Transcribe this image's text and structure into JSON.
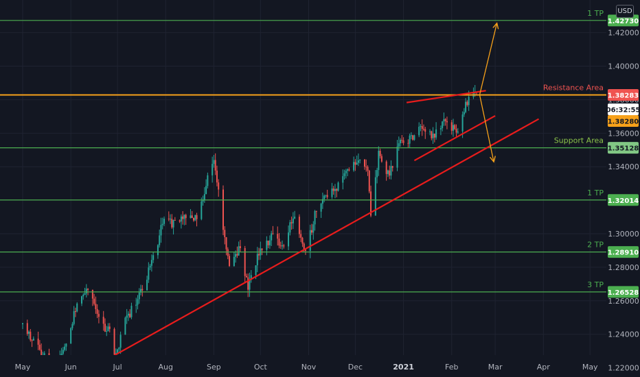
{
  "currency": "USD",
  "countdown": "06:32:55",
  "colors": {
    "background": "#131722",
    "grid": "#1f2331",
    "up": "#26a69a",
    "down": "#ef5350",
    "green_level": "#4caf50",
    "resistance": "#f7a11a",
    "trend": "#e81c1c",
    "countdown_bg": "#ffffff"
  },
  "chart_data": {
    "type": "candlestick",
    "x_axis": {
      "ticks": [
        "May",
        "Jun",
        "Jul",
        "Aug",
        "Sep",
        "Oct",
        "Nov",
        "Dec",
        "2021",
        "Feb",
        "Mar",
        "Apr",
        "May"
      ],
      "range": [
        "2020-05-01",
        "2021-05-04"
      ]
    },
    "y_axis": {
      "ticks": [
        "1.22000",
        "1.24000",
        "1.26000",
        "1.28000",
        "1.30000",
        "1.32000",
        "1.34000",
        "1.36000",
        "1.38000",
        "1.40000",
        "1.42000"
      ],
      "range": [
        1.2145,
        1.4395
      ],
      "grid": true
    },
    "price_marks": {
      "last_close": "1.38283",
      "current": "1.38280"
    },
    "levels": [
      {
        "label": "1 TP",
        "price": "1.42730",
        "value": 1.4273,
        "color": "green"
      },
      {
        "label": "Resistance Area",
        "price": "1.38283",
        "value": 1.38283,
        "color": "orange"
      },
      {
        "label": "Support Area",
        "price": "1.35128",
        "value": 1.35128,
        "color": "green"
      },
      {
        "label": "1 TP",
        "price": "1.32014",
        "value": 1.32014,
        "color": "green"
      },
      {
        "label": "2 TP",
        "price": "1.28910",
        "value": 1.2891,
        "color": "green"
      },
      {
        "label": "3 TP",
        "price": "1.26528",
        "value": 1.26528,
        "color": "green"
      }
    ],
    "series": [
      {
        "type": "candlestick",
        "interval": "daily",
        "ohlc_path": [
          [
            "2020-05-01",
            1.246
          ],
          [
            "2020-05-07",
            1.238
          ],
          [
            "2020-05-13",
            1.228
          ],
          [
            "2020-05-20",
            1.222
          ],
          [
            "2020-05-27",
            1.231
          ],
          [
            "2020-06-03",
            1.252
          ],
          [
            "2020-06-09",
            1.265
          ],
          [
            "2020-06-12",
            1.268
          ],
          [
            "2020-06-19",
            1.248
          ],
          [
            "2020-06-26",
            1.242
          ],
          [
            "2020-06-30",
            1.226
          ],
          [
            "2020-07-06",
            1.248
          ],
          [
            "2020-07-15",
            1.262
          ],
          [
            "2020-07-24",
            1.285
          ],
          [
            "2020-07-31",
            1.311
          ],
          [
            "2020-08-07",
            1.305
          ],
          [
            "2020-08-14",
            1.312
          ],
          [
            "2020-08-21",
            1.309
          ],
          [
            "2020-08-28",
            1.333
          ],
          [
            "2020-09-01",
            1.345
          ],
          [
            "2020-09-04",
            1.327
          ],
          [
            "2020-09-08",
            1.298
          ],
          [
            "2020-09-11",
            1.281
          ],
          [
            "2020-09-18",
            1.292
          ],
          [
            "2020-09-23",
            1.268
          ],
          [
            "2020-09-30",
            1.289
          ],
          [
            "2020-10-09",
            1.299
          ],
          [
            "2020-10-16",
            1.292
          ],
          [
            "2020-10-22",
            1.31
          ],
          [
            "2020-10-30",
            1.289
          ],
          [
            "2020-11-05",
            1.311
          ],
          [
            "2020-11-11",
            1.324
          ],
          [
            "2020-11-18",
            1.327
          ],
          [
            "2020-11-25",
            1.335
          ],
          [
            "2020-12-04",
            1.347
          ],
          [
            "2020-12-09",
            1.335
          ],
          [
            "2020-12-11",
            1.313
          ],
          [
            "2020-12-16",
            1.348
          ],
          [
            "2020-12-22",
            1.335
          ],
          [
            "2020-12-31",
            1.357
          ],
          [
            "2021-01-06",
            1.356
          ],
          [
            "2021-01-12",
            1.366
          ],
          [
            "2021-01-20",
            1.358
          ],
          [
            "2021-01-29",
            1.368
          ],
          [
            "2021-02-04",
            1.359
          ],
          [
            "2021-02-10",
            1.378
          ],
          [
            "2021-02-15",
            1.386
          ],
          [
            "2021-02-17",
            1.383
          ]
        ]
      }
    ],
    "annotations": [
      {
        "type": "trend_line",
        "color": "red",
        "from": [
          "2020-06-04",
          1.2145
        ],
        "to": [
          "2021-03-29",
          1.3685
        ]
      },
      {
        "type": "channel_upper",
        "color": "red",
        "from": [
          "2021-01-03",
          1.3783
        ],
        "to": [
          "2021-02-23",
          1.3854
        ]
      },
      {
        "type": "channel_lower",
        "color": "red",
        "from": [
          "2021-01-08",
          1.3437
        ],
        "to": [
          "2021-03-01",
          1.3704
        ]
      },
      {
        "type": "arrow",
        "color": "orange",
        "from": [
          "2021-02-19",
          1.3829
        ],
        "to": [
          "2021-03-02",
          1.4253
        ]
      },
      {
        "type": "arrow",
        "color": "orange",
        "from": [
          "2021-02-19",
          1.3829
        ],
        "to": [
          "2021-02-28",
          1.3433
        ]
      }
    ]
  }
}
